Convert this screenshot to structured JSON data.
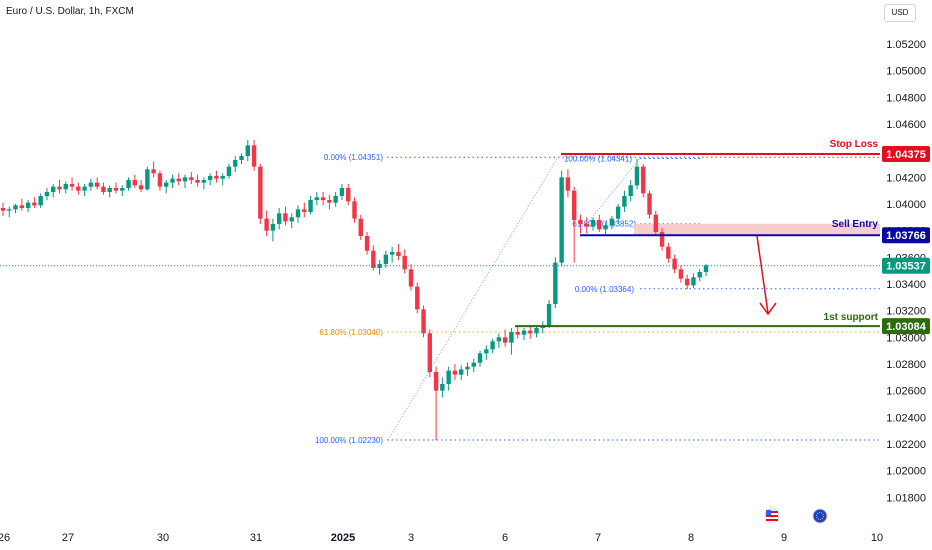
{
  "title": "Euro / U.S. Dollar, 1h, FXCM",
  "currency_button": "USD",
  "chart_data": {
    "type": "candlestick",
    "y_ticks": [
      "1.05200",
      "1.05000",
      "1.04800",
      "1.04600",
      "1.04400",
      "1.04200",
      "1.04000",
      "1.03800",
      "1.03600",
      "1.03400",
      "1.03200",
      "1.03000",
      "1.02800",
      "1.02600",
      "1.02400",
      "1.02200",
      "1.02000",
      "1.01800"
    ],
    "x_ticks": [
      "26",
      "27",
      "30",
      "31",
      "2025",
      "3",
      "6",
      "7",
      "8",
      "9",
      "10"
    ],
    "ylim": [
      1.0172,
      1.0535
    ],
    "series_ohlc": [
      [
        1.0397,
        1.0401,
        1.0391,
        1.0395
      ],
      [
        1.0395,
        1.0398,
        1.039,
        1.0396
      ],
      [
        1.0396,
        1.04,
        1.0393,
        1.0399
      ],
      [
        1.0399,
        1.0404,
        1.0395,
        1.0397
      ],
      [
        1.0397,
        1.0403,
        1.0394,
        1.0401
      ],
      [
        1.0401,
        1.0405,
        1.0397,
        1.0399
      ],
      [
        1.0399,
        1.0408,
        1.0397,
        1.0406
      ],
      [
        1.0406,
        1.0412,
        1.0403,
        1.0409
      ],
      [
        1.0409,
        1.0415,
        1.0405,
        1.0413
      ],
      [
        1.0413,
        1.0418,
        1.0408,
        1.0411
      ],
      [
        1.0411,
        1.0417,
        1.0408,
        1.0415
      ],
      [
        1.0415,
        1.042,
        1.041,
        1.0413
      ],
      [
        1.0413,
        1.0416,
        1.0407,
        1.041
      ],
      [
        1.041,
        1.0415,
        1.0406,
        1.0413
      ],
      [
        1.0413,
        1.0419,
        1.041,
        1.0416
      ],
      [
        1.0416,
        1.042,
        1.0411,
        1.0413
      ],
      [
        1.0413,
        1.0416,
        1.0407,
        1.0409
      ],
      [
        1.0409,
        1.0414,
        1.0405,
        1.0412
      ],
      [
        1.0412,
        1.0416,
        1.0408,
        1.041
      ],
      [
        1.041,
        1.0414,
        1.0406,
        1.0412
      ],
      [
        1.0412,
        1.042,
        1.041,
        1.0418
      ],
      [
        1.0418,
        1.0422,
        1.0412,
        1.0414
      ],
      [
        1.0414,
        1.0418,
        1.0409,
        1.0411
      ],
      [
        1.0411,
        1.0428,
        1.041,
        1.0426
      ],
      [
        1.0426,
        1.0432,
        1.042,
        1.0423
      ],
      [
        1.0423,
        1.0425,
        1.041,
        1.0413
      ],
      [
        1.0413,
        1.0418,
        1.0408,
        1.0416
      ],
      [
        1.0416,
        1.0422,
        1.0412,
        1.0419
      ],
      [
        1.0419,
        1.0423,
        1.0414,
        1.0417
      ],
      [
        1.0417,
        1.0422,
        1.0412,
        1.042
      ],
      [
        1.042,
        1.0424,
        1.0415,
        1.0418
      ],
      [
        1.0418,
        1.0422,
        1.0413,
        1.0416
      ],
      [
        1.0416,
        1.042,
        1.0411,
        1.0418
      ],
      [
        1.0418,
        1.0423,
        1.0414,
        1.0421
      ],
      [
        1.0421,
        1.0425,
        1.0416,
        1.0419
      ],
      [
        1.0419,
        1.0423,
        1.0414,
        1.0421
      ],
      [
        1.0421,
        1.043,
        1.0419,
        1.0428
      ],
      [
        1.0428,
        1.0436,
        1.0424,
        1.0433
      ],
      [
        1.0433,
        1.0438,
        1.043,
        1.0436
      ],
      [
        1.0436,
        1.0448,
        1.0432,
        1.0444
      ],
      [
        1.0444,
        1.0448,
        1.0425,
        1.0428
      ],
      [
        1.0428,
        1.043,
        1.0385,
        1.0389
      ],
      [
        1.0389,
        1.0395,
        1.0376,
        1.038
      ],
      [
        1.038,
        1.0389,
        1.0372,
        1.0385
      ],
      [
        1.0385,
        1.0397,
        1.0381,
        1.0393
      ],
      [
        1.0393,
        1.0398,
        1.0384,
        1.0387
      ],
      [
        1.0387,
        1.0393,
        1.0382,
        1.039
      ],
      [
        1.039,
        1.0399,
        1.0386,
        1.0396
      ],
      [
        1.0396,
        1.0401,
        1.039,
        1.0394
      ],
      [
        1.0394,
        1.0406,
        1.0392,
        1.0403
      ],
      [
        1.0403,
        1.0409,
        1.0399,
        1.0405
      ],
      [
        1.0405,
        1.0409,
        1.0399,
        1.0403
      ],
      [
        1.0403,
        1.0407,
        1.0396,
        1.0401
      ],
      [
        1.0401,
        1.0409,
        1.0398,
        1.0406
      ],
      [
        1.0406,
        1.0415,
        1.0403,
        1.0412
      ],
      [
        1.0412,
        1.0415,
        1.0399,
        1.0402
      ],
      [
        1.0402,
        1.0405,
        1.0386,
        1.0389
      ],
      [
        1.0389,
        1.0392,
        1.0373,
        1.0376
      ],
      [
        1.0376,
        1.0379,
        1.0362,
        1.0365
      ],
      [
        1.0365,
        1.0369,
        1.035,
        1.0352
      ],
      [
        1.0352,
        1.0358,
        1.0347,
        1.0355
      ],
      [
        1.0355,
        1.0365,
        1.0352,
        1.0362
      ],
      [
        1.0362,
        1.0368,
        1.0356,
        1.0364
      ],
      [
        1.0364,
        1.037,
        1.0358,
        1.0361
      ],
      [
        1.0361,
        1.0366,
        1.0348,
        1.0351
      ],
      [
        1.0351,
        1.0355,
        1.0335,
        1.0338
      ],
      [
        1.0338,
        1.0341,
        1.0318,
        1.0321
      ],
      [
        1.0321,
        1.0324,
        1.03,
        1.0303
      ],
      [
        1.0303,
        1.0306,
        1.027,
        1.0274
      ],
      [
        1.0274,
        1.0278,
        1.0223,
        1.026
      ],
      [
        1.026,
        1.027,
        1.0255,
        1.0265
      ],
      [
        1.0265,
        1.0278,
        1.026,
        1.0275
      ],
      [
        1.0275,
        1.028,
        1.0268,
        1.0272
      ],
      [
        1.0272,
        1.0279,
        1.0268,
        1.0276
      ],
      [
        1.0276,
        1.0281,
        1.0271,
        1.0278
      ],
      [
        1.0278,
        1.0284,
        1.0274,
        1.0281
      ],
      [
        1.0281,
        1.029,
        1.0278,
        1.0288
      ],
      [
        1.0288,
        1.0294,
        1.0283,
        1.0291
      ],
      [
        1.0291,
        1.0299,
        1.0288,
        1.0297
      ],
      [
        1.0297,
        1.0303,
        1.0292,
        1.03
      ],
      [
        1.03,
        1.0306,
        1.0293,
        1.0296
      ],
      [
        1.0296,
        1.0307,
        1.0287,
        1.0304
      ],
      [
        1.0304,
        1.0309,
        1.0299,
        1.0302
      ],
      [
        1.0302,
        1.0307,
        1.0298,
        1.0305
      ],
      [
        1.0305,
        1.0309,
        1.0299,
        1.0303
      ],
      [
        1.0303,
        1.0309,
        1.03,
        1.0307
      ],
      [
        1.0307,
        1.0312,
        1.0303,
        1.0309
      ],
      [
        1.0309,
        1.0328,
        1.0307,
        1.0325
      ],
      [
        1.0325,
        1.036,
        1.0322,
        1.0356
      ],
      [
        1.0356,
        1.0425,
        1.0353,
        1.042
      ],
      [
        1.042,
        1.0426,
        1.0405,
        1.041
      ],
      [
        1.041,
        1.0413,
        1.0356,
        1.0388
      ],
      [
        1.0388,
        1.0392,
        1.0378,
        1.0385
      ],
      [
        1.0385,
        1.039,
        1.0378,
        1.0383
      ],
      [
        1.0383,
        1.039,
        1.038,
        1.0388
      ],
      [
        1.0388,
        1.0392,
        1.0379,
        1.0381
      ],
      [
        1.0381,
        1.0386,
        1.0377,
        1.0384
      ],
      [
        1.0384,
        1.0391,
        1.0381,
        1.0389
      ],
      [
        1.0389,
        1.04,
        1.0386,
        1.0398
      ],
      [
        1.0398,
        1.041,
        1.0394,
        1.0406
      ],
      [
        1.0406,
        1.0418,
        1.0402,
        1.0414
      ],
      [
        1.0414,
        1.0434,
        1.0411,
        1.0428
      ],
      [
        1.0428,
        1.043,
        1.0405,
        1.0408
      ],
      [
        1.0408,
        1.041,
        1.0389,
        1.0392
      ],
      [
        1.0392,
        1.0395,
        1.0376,
        1.0379
      ],
      [
        1.0379,
        1.0382,
        1.0365,
        1.0368
      ],
      [
        1.0368,
        1.0371,
        1.0356,
        1.0359
      ],
      [
        1.0359,
        1.0362,
        1.0348,
        1.0351
      ],
      [
        1.0351,
        1.0354,
        1.0341,
        1.0344
      ],
      [
        1.0344,
        1.0347,
        1.0336,
        1.0339
      ],
      [
        1.0339,
        1.0348,
        1.0337,
        1.0345
      ],
      [
        1.0345,
        1.0351,
        1.0342,
        1.0349
      ],
      [
        1.0349,
        1.0355,
        1.0346,
        1.0354
      ]
    ],
    "fib_upper": {
      "labels": [
        "0.00% (1.04351)",
        "100.00% (1.04341)",
        "61.80% (1.03852)",
        "0.00% (1.03364)"
      ],
      "levels": [
        1.04351,
        1.04341,
        1.03852,
        1.03364
      ]
    },
    "fib_lower": {
      "labels": [
        "61.80% (1.03040)",
        "100.00% (1.02230)"
      ],
      "levels": [
        1.0304,
        1.0223
      ]
    },
    "levels": [
      {
        "name": "Stop Loss",
        "price": "1.04375",
        "value": 1.04375,
        "color": "#e0101f"
      },
      {
        "name": "Sell Entry",
        "price": "1.03766",
        "value": 1.03766,
        "color": "#0a0aa3"
      },
      {
        "name": "",
        "price": "1.03537",
        "value": 1.03537,
        "color": "#089981"
      },
      {
        "name": "1st support",
        "price": "1.03084",
        "value": 1.03084,
        "color": "#2e6b0e"
      }
    ],
    "colors": {
      "up": "#089981",
      "down": "#f23645",
      "sell_zone": "#f8c4c6"
    }
  }
}
